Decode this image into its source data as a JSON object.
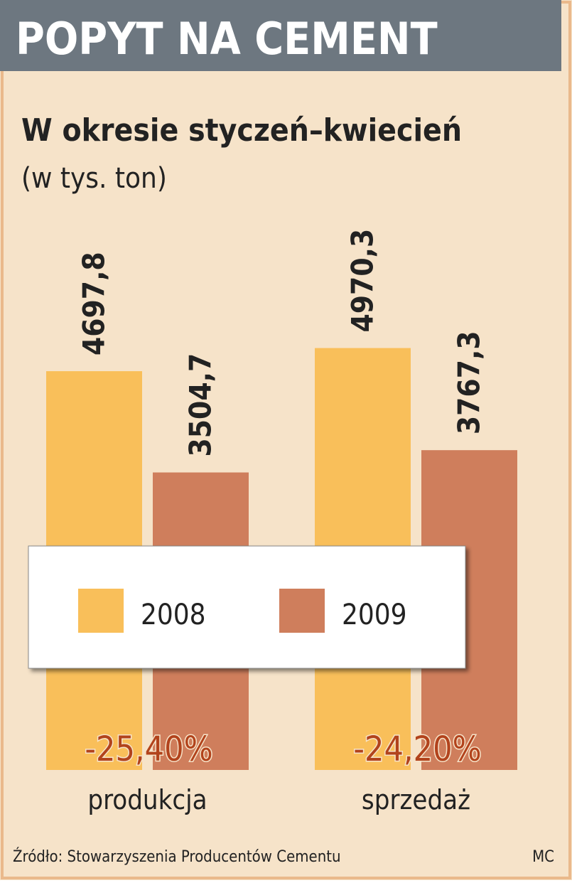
{
  "chart_data": {
    "type": "bar",
    "title": "POPYT NA CEMENT",
    "subtitle": "W okresie styczeń–kwiecień",
    "unit_note": "(w tys. ton)",
    "categories": [
      "produkcja",
      "sprzedaż"
    ],
    "series": [
      {
        "name": "2008",
        "color": "#f9bf5a",
        "values": [
          4697.8,
          4970.3
        ],
        "value_labels": [
          "4697,8",
          "4970,3"
        ]
      },
      {
        "name": "2009",
        "color": "#cf7e5c",
        "values": [
          3504.7,
          3767.3
        ],
        "value_labels": [
          "3504,7",
          "3767,3"
        ]
      }
    ],
    "annotations": [
      "-25,40%",
      "-24,20%"
    ],
    "source": "Źródło: Stowarzyszenia Producentów Cementu",
    "credit": "MC"
  }
}
